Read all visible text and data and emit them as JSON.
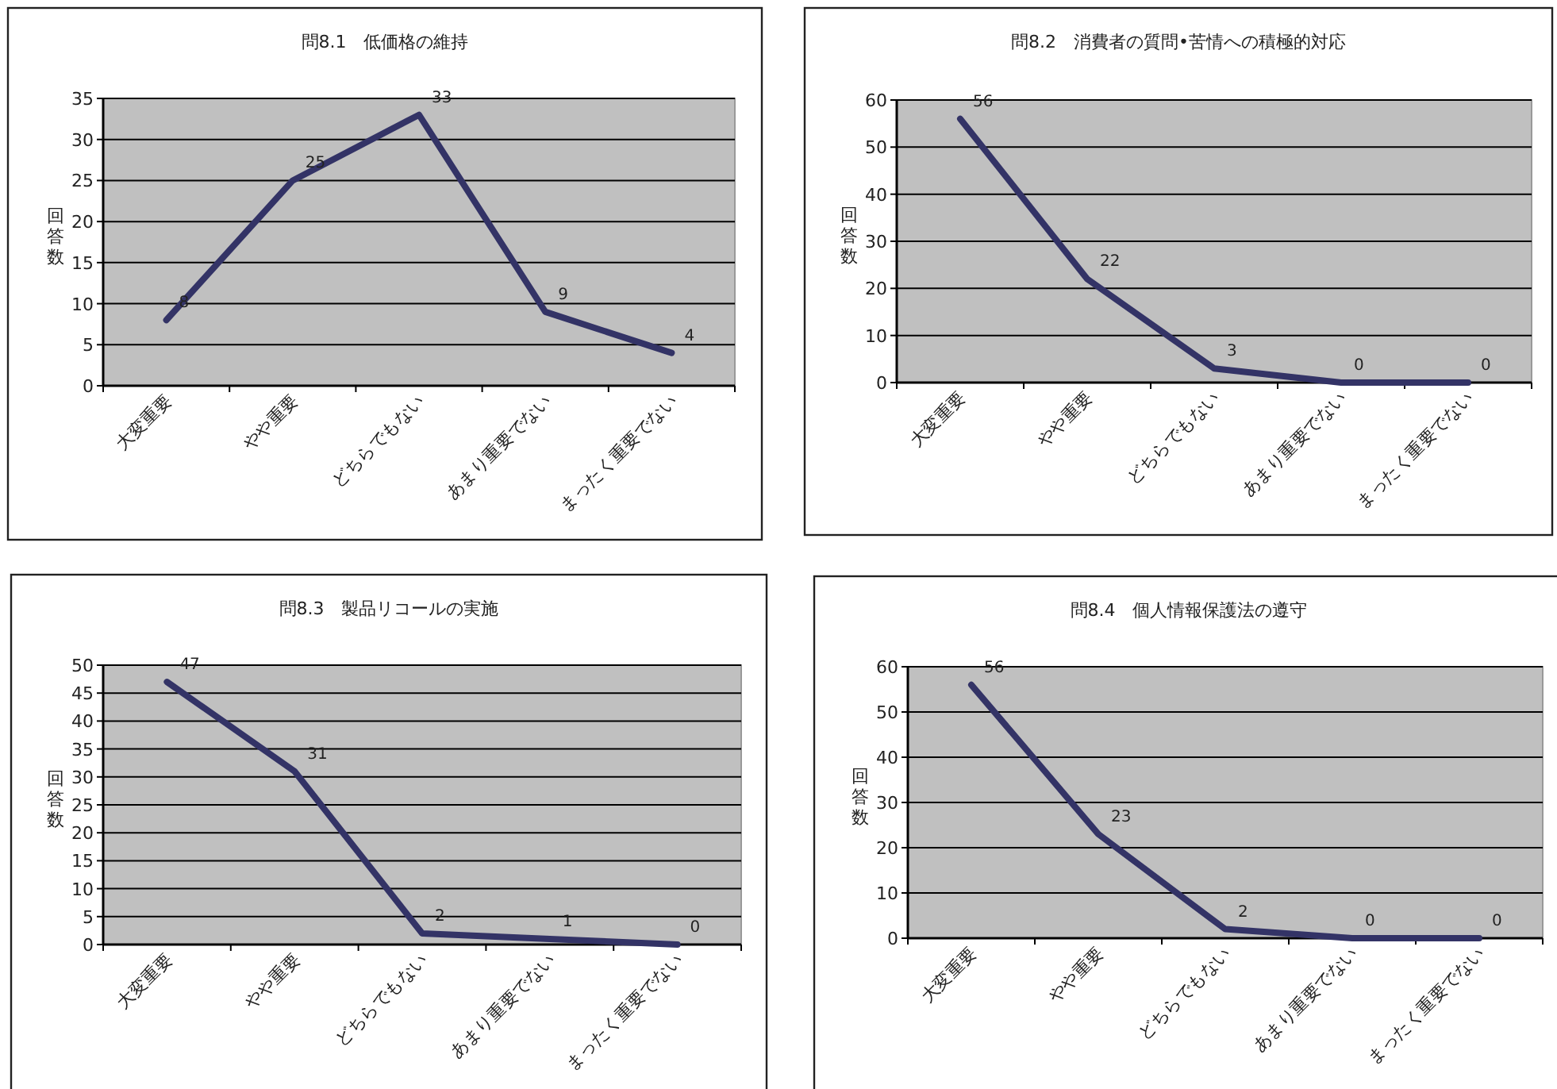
{
  "chart_data": [
    {
      "type": "line",
      "title": "問8.1　低価格の維持",
      "ylabel": "回答数",
      "categories": [
        "大変重要",
        "やや重要",
        "どちらでもない",
        "あまり重要でない",
        "まったく重要でない"
      ],
      "series": [
        {
          "color": "#333366",
          "values": [
            8,
            25,
            33,
            9,
            4
          ]
        }
      ],
      "ylim": [
        0,
        35
      ],
      "yticks": [
        0,
        5,
        10,
        15,
        20,
        25,
        30,
        35
      ],
      "grid": "y",
      "data_labels": true
    },
    {
      "type": "line",
      "title": "問8.2　消費者の質問•苦情への積極的対応",
      "ylabel": "回答数",
      "categories": [
        "大変重要",
        "やや重要",
        "どちらでもない",
        "あまり重要でない",
        "まったく重要でない"
      ],
      "series": [
        {
          "color": "#333366",
          "values": [
            56,
            22,
            3,
            0,
            0
          ]
        }
      ],
      "ylim": [
        0,
        60
      ],
      "yticks": [
        0,
        10,
        20,
        30,
        40,
        50,
        60
      ],
      "grid": "y",
      "data_labels": true
    },
    {
      "type": "line",
      "title": "問8.3　製品リコールの実施",
      "ylabel": "回答数",
      "categories": [
        "大変重要",
        "やや重要",
        "どちらでもない",
        "あまり重要でない",
        "まったく重要でない"
      ],
      "series": [
        {
          "color": "#333366",
          "values": [
            47,
            31,
            2,
            1,
            0
          ]
        }
      ],
      "ylim": [
        0,
        50
      ],
      "yticks": [
        0,
        5,
        10,
        15,
        20,
        25,
        30,
        35,
        40,
        45,
        50
      ],
      "grid": "y",
      "data_labels": true
    },
    {
      "type": "line",
      "title": "問8.4　個人情報保護法の遵守",
      "ylabel": "回答数",
      "categories": [
        "大変重要",
        "やや重要",
        "どちらでもない",
        "あまり重要でない",
        "まったく重要でない"
      ],
      "series": [
        {
          "color": "#333366",
          "values": [
            56,
            23,
            2,
            0,
            0
          ]
        }
      ],
      "ylim": [
        0,
        60
      ],
      "yticks": [
        0,
        10,
        20,
        30,
        40,
        50,
        60
      ],
      "grid": "y",
      "data_labels": true
    }
  ]
}
